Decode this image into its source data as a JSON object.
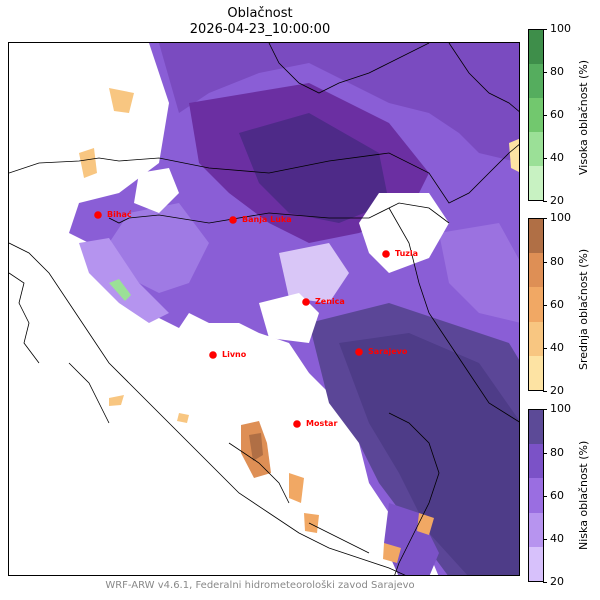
{
  "title": {
    "line1": "Oblačnost",
    "line2": "2026-04-23_10:00:00"
  },
  "footer": "WRF-ARW v4.6.1, Federalni hidrometeorološki zavod Sarajevo",
  "colorbars": [
    {
      "label": "Visoka oblačnost (%)",
      "ticks": [
        "100",
        "80",
        "60",
        "40",
        "20"
      ],
      "colors": [
        "#3e8e4a",
        "#55ad5e",
        "#72c86e",
        "#9be097",
        "#c8f2c2"
      ]
    },
    {
      "label": "Srednja oblačnost (%)",
      "ticks": [
        "100",
        "80",
        "60",
        "40",
        "20"
      ],
      "colors": [
        "#b06f45",
        "#de8f55",
        "#f1a864",
        "#f8c681",
        "#fde3a3"
      ]
    },
    {
      "label": "Niska oblačnost (%)",
      "ticks": [
        "100",
        "80",
        "60",
        "40",
        "20"
      ],
      "colors": [
        "#5c4a97",
        "#7b52c7",
        "#9a6ee1",
        "#b794ef",
        "#d7c1fb"
      ]
    }
  ],
  "cities": [
    {
      "name": "Bihać"
    },
    {
      "name": "Banja Luka"
    },
    {
      "name": "Tuzla"
    },
    {
      "name": "Zenica"
    },
    {
      "name": "Sarajevo"
    },
    {
      "name": "Livno"
    },
    {
      "name": "Mostar"
    }
  ]
}
